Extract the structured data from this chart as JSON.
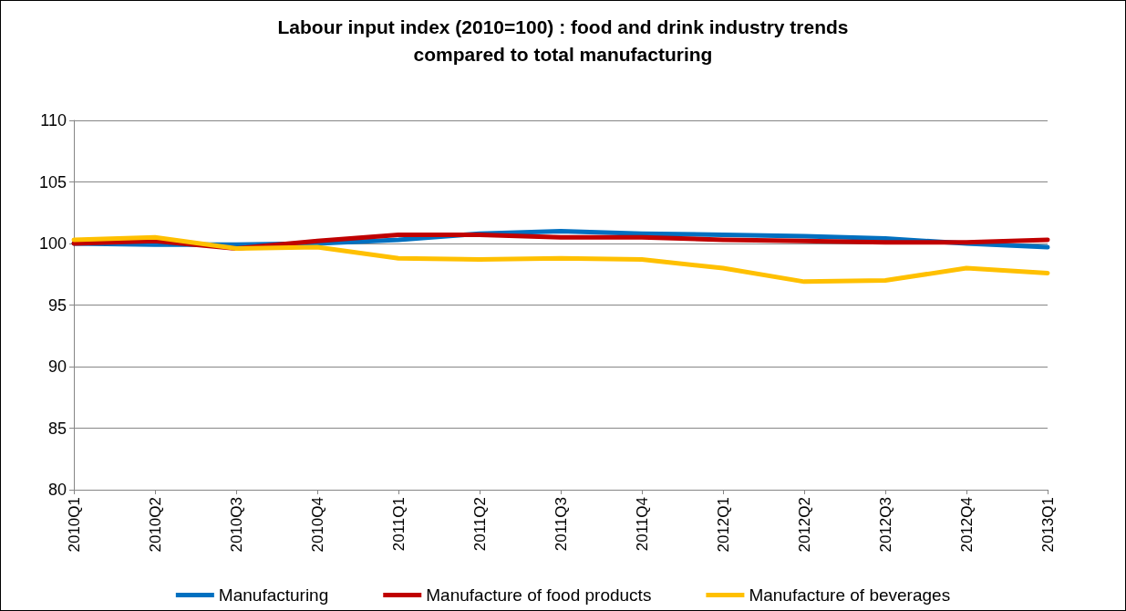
{
  "chart_data": {
    "type": "line",
    "title": "Labour input index (2010=100) : food and drink industry trends\ncompared to total manufacturing",
    "categories": [
      "2010Q1",
      "2010Q2",
      "2010Q3",
      "2010Q4",
      "2011Q1",
      "2011Q2",
      "2011Q3",
      "2011Q4",
      "2012Q1",
      "2012Q2",
      "2012Q3",
      "2012Q4",
      "2013Q1"
    ],
    "series": [
      {
        "name": "Manufacturing",
        "color": "#0070c0",
        "values": [
          100,
          99.9,
          99.9,
          100.0,
          100.3,
          100.8,
          101.0,
          100.8,
          100.7,
          100.6,
          100.4,
          100.0,
          99.7
        ]
      },
      {
        "name": "Manufacture of food products",
        "color": "#c00000",
        "values": [
          100,
          100.2,
          99.6,
          100.2,
          100.7,
          100.7,
          100.5,
          100.5,
          100.3,
          100.2,
          100.1,
          100.1,
          100.3
        ]
      },
      {
        "name": "Manufacture of beverages",
        "color": "#ffc000",
        "values": [
          100.3,
          100.5,
          99.6,
          99.7,
          98.8,
          98.7,
          98.8,
          98.7,
          98.0,
          96.9,
          97.0,
          98.0,
          97.6
        ]
      }
    ],
    "ylim": [
      80,
      110
    ],
    "yticks": [
      80,
      85,
      90,
      95,
      100,
      105,
      110
    ],
    "grid": "y",
    "legend": "bottom",
    "marker": "none",
    "line_style": "solid"
  }
}
